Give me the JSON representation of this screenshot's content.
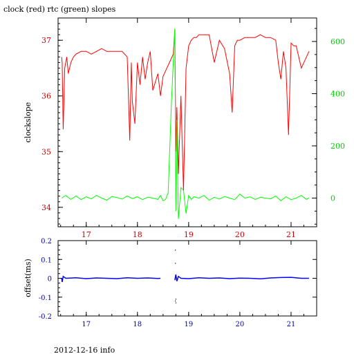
{
  "title": "clock (red) rtc (green) slopes",
  "footer": "2012-12-16 info",
  "chart_data": [
    {
      "type": "line",
      "ylabel": "clockslope",
      "xlim": [
        16.45,
        21.5
      ],
      "ylim_left": [
        33.65,
        37.4
      ],
      "ylim_right": [
        -110,
        690
      ],
      "x_ticks": [
        "17",
        "18",
        "19",
        "20",
        "21"
      ],
      "y_ticks_left": [
        "34",
        "35",
        "36",
        "37"
      ],
      "y_ticks_right": [
        "0",
        "200",
        "400",
        "600"
      ],
      "colors": {
        "clock": "#ff0000",
        "rtc": "#00ff00"
      },
      "series": [
        {
          "axis": "left",
          "color": "#ff0000",
          "x": [
            16.52,
            16.53,
            16.55,
            16.58,
            16.62,
            16.65,
            16.7,
            16.75,
            16.8,
            16.9,
            17.0,
            17.1,
            17.2,
            17.3,
            17.4,
            17.5,
            17.6,
            17.7,
            17.8,
            17.85,
            17.88,
            17.9,
            17.95,
            18.0,
            18.05,
            18.1,
            18.15,
            18.2,
            18.25,
            18.3,
            18.4,
            18.45,
            18.5,
            18.6,
            18.7,
            18.73,
            18.75,
            18.77,
            18.8,
            18.85,
            18.9,
            18.95,
            19.0,
            19.05,
            19.1,
            19.15,
            19.2,
            19.3,
            19.4,
            19.5,
            19.6,
            19.7,
            19.8,
            19.85,
            19.9,
            19.95,
            20.0,
            20.1,
            20.2,
            20.3,
            20.4,
            20.5,
            20.6,
            20.7,
            20.75,
            20.8,
            20.85,
            20.9,
            20.95,
            21.0,
            21.05,
            21.1,
            21.15,
            21.2,
            21.25,
            21.3,
            21.35
          ],
          "y": [
            36.7,
            36.6,
            35.4,
            36.5,
            36.7,
            36.4,
            36.6,
            36.7,
            36.75,
            36.8,
            36.8,
            36.75,
            36.8,
            36.85,
            36.8,
            36.8,
            36.8,
            36.8,
            36.7,
            35.2,
            36.6,
            35.9,
            35.5,
            36.6,
            36.2,
            36.7,
            36.3,
            36.6,
            36.8,
            36.1,
            36.4,
            36.0,
            36.35,
            36.55,
            36.75,
            37.2,
            35.0,
            35.8,
            34.6,
            36.0,
            34.3,
            36.5,
            36.9,
            37.0,
            37.05,
            37.05,
            37.1,
            37.1,
            37.1,
            36.6,
            37.0,
            36.85,
            36.4,
            35.7,
            36.9,
            37.0,
            37.0,
            37.05,
            37.05,
            37.05,
            37.1,
            37.05,
            37.05,
            37.0,
            36.6,
            36.3,
            36.8,
            36.5,
            35.3,
            36.95,
            36.9,
            36.9,
            36.7,
            36.5,
            36.6,
            36.7,
            36.8
          ]
        },
        {
          "axis": "right",
          "color": "#00ff00",
          "x": [
            16.52,
            16.6,
            16.7,
            16.8,
            16.9,
            17.0,
            17.1,
            17.2,
            17.3,
            17.4,
            17.5,
            17.6,
            17.7,
            17.8,
            17.9,
            18.0,
            18.1,
            18.2,
            18.3,
            18.4,
            18.45,
            18.5,
            18.55,
            18.6,
            18.63,
            18.66,
            18.7,
            18.73,
            18.75,
            18.77,
            18.8,
            18.85,
            18.9,
            18.95,
            19.0,
            19.05,
            19.1,
            19.2,
            19.3,
            19.4,
            19.5,
            19.6,
            19.7,
            19.8,
            19.9,
            20.0,
            20.1,
            20.2,
            20.3,
            20.4,
            20.5,
            20.6,
            20.7,
            20.8,
            20.9,
            21.0,
            21.1,
            21.2,
            21.3,
            21.35
          ],
          "y": [
            0,
            10,
            -5,
            8,
            -6,
            5,
            -3,
            10,
            0,
            -8,
            6,
            2,
            -4,
            8,
            -2,
            5,
            -6,
            3,
            0,
            -5,
            10,
            -10,
            -5,
            20,
            180,
            350,
            520,
            650,
            -50,
            300,
            -80,
            40,
            30,
            -60,
            10,
            -5,
            5,
            0,
            10,
            -8,
            3,
            -4,
            6,
            0,
            -6,
            15,
            0,
            5,
            -5,
            3,
            0,
            -3,
            8,
            -10,
            5,
            -6,
            0,
            10,
            -5,
            0
          ]
        }
      ]
    },
    {
      "type": "line",
      "ylabel": "offset(ms)",
      "xlim": [
        16.45,
        21.5
      ],
      "ylim": [
        -0.2,
        0.2
      ],
      "x_ticks": [
        "17",
        "18",
        "19",
        "20",
        "21"
      ],
      "y_ticks": [
        "-0.2",
        "-0.1",
        "0",
        "0.1",
        "0.2"
      ],
      "color": "#0000ff",
      "series": [
        {
          "color": "#0000ff",
          "x": [
            16.52,
            16.53,
            16.55,
            16.6,
            16.8,
            17.0,
            17.2,
            17.4,
            17.6,
            17.8,
            18.0,
            18.2,
            18.4,
            18.45
          ],
          "y": [
            0.0,
            -0.02,
            0.01,
            0.0,
            0.003,
            -0.002,
            0.002,
            0.0,
            -0.002,
            0.003,
            0.0,
            0.002,
            -0.001,
            0.0
          ]
        },
        {
          "color": "#0000ff",
          "x": [
            18.73,
            18.75,
            18.77,
            18.8,
            18.85,
            19.0,
            19.2,
            19.4,
            19.6,
            19.8,
            20.0,
            20.2,
            20.4,
            20.6,
            20.8,
            21.0,
            21.2,
            21.35
          ],
          "y": [
            -0.01,
            0.02,
            -0.015,
            0.01,
            0.0,
            -0.002,
            0.003,
            0.0,
            0.002,
            -0.002,
            0.001,
            0.0,
            -0.003,
            0.002,
            0.004,
            0.005,
            0.0,
            0.0
          ]
        }
      ],
      "scatter_points": {
        "x": [
          18.74,
          18.74,
          18.75,
          18.74,
          18.75
        ],
        "y": [
          0.15,
          0.08,
          -0.11,
          -0.12,
          -0.13
        ]
      }
    }
  ]
}
